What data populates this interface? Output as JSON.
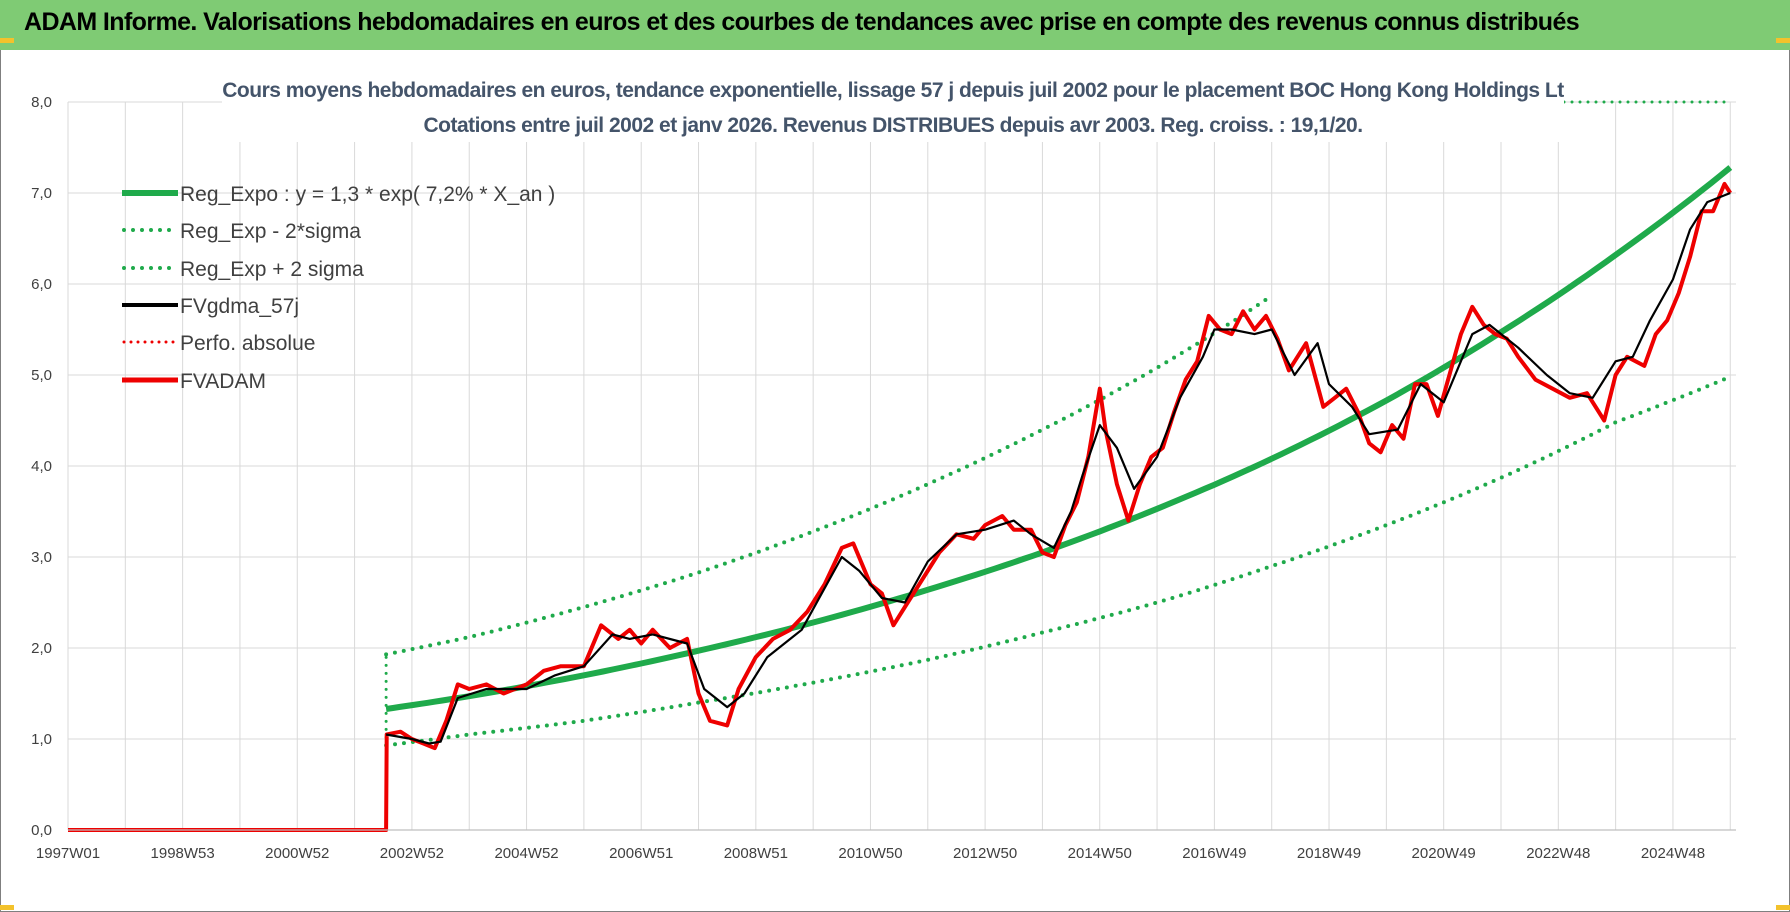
{
  "header": {
    "title": "ADAM Informe. Valorisations hebdomadaires en euros et des courbes de tendances avec prise en compte des revenus connus distribués"
  },
  "colors": {
    "banner": "#7fcb74",
    "reg_expo": "#1faa4b",
    "fvgdma": "#000000",
    "fvadam": "#ee0000",
    "perfo": "#ee0000",
    "grid": "#d9d9d9"
  },
  "chart_data": {
    "type": "line",
    "title": [
      "Cours moyens hebdomadaires en euros, tendance exponentielle, lissage 57 j depuis juil 2002 pour le placement BOC Hong Kong Holdings Lt",
      "Cotations entre juil 2002 et janv 2026. Revenus DISTRIBUES depuis avr 2003. Reg. croiss. : 19,1/20."
    ],
    "x_unit": "year",
    "xlim": [
      1997.0,
      2026.1
    ],
    "x_ticks": [
      1997.0,
      1999.0,
      2001.0,
      2003.0,
      2005.0,
      2007.0,
      2009.0,
      2011.0,
      2013.0,
      2015.0,
      2017.0,
      2019.0,
      2021.0,
      2023.0,
      2025.0
    ],
    "x_tick_labels": [
      "1997W01",
      "1998W53",
      "2000W52",
      "2002W52",
      "2004W52",
      "2006W51",
      "2008W51",
      "2010W50",
      "2012W50",
      "2014W50",
      "2016W49",
      "2018W49",
      "2020W49",
      "2022W48",
      "2024W48"
    ],
    "ylim": [
      0,
      8
    ],
    "y_ticks": [
      0,
      1,
      2,
      3,
      4,
      5,
      6,
      7,
      8
    ],
    "y_tick_labels": [
      "0,0",
      "1,0",
      "2,0",
      "3,0",
      "4,0",
      "5,0",
      "6,0",
      "7,0",
      "8,0"
    ],
    "grid": true,
    "legend_position": "top-left",
    "series": [
      {
        "name": "Reg_Expo : y = 1,3 * exp( 7,2% *  X_an )",
        "style": "solid-thick",
        "color": "#1faa4b",
        "x": [
          2002.55,
          2004.0,
          2006.0,
          2008.0,
          2010.0,
          2012.0,
          2014.0,
          2016.0,
          2018.0,
          2020.0,
          2022.0,
          2024.0,
          2026.0
        ],
        "y": [
          1.33,
          1.47,
          1.7,
          1.97,
          2.28,
          2.64,
          3.05,
          3.53,
          4.08,
          4.72,
          5.47,
          6.32,
          7.28
        ]
      },
      {
        "name": "Reg_Exp - 2*sigma",
        "style": "dotted",
        "color": "#1faa4b",
        "x": [
          2002.55,
          2004.0,
          2006.0,
          2008.0,
          2010.0,
          2012.0,
          2014.0,
          2016.0,
          2018.0,
          2020.0,
          2022.0,
          2024.0,
          2026.0
        ],
        "y": [
          0.93,
          1.05,
          1.2,
          1.4,
          1.62,
          1.87,
          2.17,
          2.5,
          2.9,
          3.35,
          3.87,
          4.48,
          4.98
        ]
      },
      {
        "name": "Reg_Exp + 2 sigma",
        "style": "dotted",
        "color": "#1faa4b",
        "x": [
          2002.55,
          2004.0,
          2006.0,
          2008.0,
          2010.0,
          2012.0,
          2014.0,
          2016.0,
          2018.0
        ],
        "y": [
          1.93,
          2.12,
          2.45,
          2.83,
          3.28,
          3.8,
          4.4,
          5.08,
          5.87
        ],
        "extra_segment": {
          "x": [
            2026.0,
            2027.0
          ],
          "y": [
            8.0,
            8.0
          ]
        }
      },
      {
        "name": "FVgdma_57j",
        "style": "solid",
        "color": "#000000",
        "x": [
          2002.55,
          2003.0,
          2003.3,
          2003.5,
          2003.8,
          2004.3,
          2005.0,
          2005.5,
          2006.0,
          2006.5,
          2006.8,
          2007.2,
          2007.8,
          2008.1,
          2008.5,
          2008.8,
          2009.2,
          2009.8,
          2010.5,
          2010.8,
          2011.2,
          2011.6,
          2012.0,
          2012.5,
          2013.0,
          2013.5,
          2013.8,
          2014.2,
          2014.5,
          2014.7,
          2015.0,
          2015.3,
          2015.6,
          2016.0,
          2016.4,
          2016.8,
          2017.0,
          2017.3,
          2017.7,
          2018.0,
          2018.4,
          2018.8,
          2019.0,
          2019.4,
          2019.7,
          2020.2,
          2020.6,
          2021.0,
          2021.5,
          2021.8,
          2022.3,
          2022.8,
          2023.2,
          2023.6,
          2024.0,
          2024.3,
          2024.6,
          2025.0,
          2025.3,
          2025.6,
          2026.0
        ],
        "y": [
          1.05,
          1.0,
          0.95,
          0.97,
          1.45,
          1.55,
          1.55,
          1.7,
          1.8,
          2.15,
          2.1,
          2.15,
          2.05,
          1.55,
          1.35,
          1.5,
          1.9,
          2.2,
          3.0,
          2.85,
          2.55,
          2.5,
          2.95,
          3.25,
          3.3,
          3.4,
          3.25,
          3.1,
          3.5,
          3.9,
          4.45,
          4.2,
          3.75,
          4.1,
          4.75,
          5.2,
          5.5,
          5.5,
          5.45,
          5.5,
          5.0,
          5.35,
          4.9,
          4.65,
          4.35,
          4.4,
          4.9,
          4.7,
          5.45,
          5.55,
          5.3,
          5.0,
          4.8,
          4.75,
          5.15,
          5.2,
          5.6,
          6.05,
          6.6,
          6.9,
          7.0
        ]
      },
      {
        "name": "Perfo. absolue",
        "style": "dotted",
        "color": "#ee0000",
        "x": [],
        "y": []
      },
      {
        "name": "FVADAM",
        "style": "solid-thick",
        "color": "#ee0000",
        "x": [
          1997.0,
          2002.55,
          2002.56,
          2002.8,
          2003.0,
          2003.2,
          2003.4,
          2003.6,
          2003.8,
          2004.0,
          2004.3,
          2004.6,
          2005.0,
          2005.3,
          2005.6,
          2006.0,
          2006.3,
          2006.6,
          2006.8,
          2007.0,
          2007.2,
          2007.5,
          2007.8,
          2008.0,
          2008.2,
          2008.5,
          2008.7,
          2009.0,
          2009.3,
          2009.6,
          2009.9,
          2010.2,
          2010.5,
          2010.7,
          2011.0,
          2011.2,
          2011.4,
          2011.6,
          2011.9,
          2012.2,
          2012.5,
          2012.8,
          2013.0,
          2013.3,
          2013.5,
          2013.8,
          2014.0,
          2014.2,
          2014.4,
          2014.6,
          2014.8,
          2015.0,
          2015.1,
          2015.3,
          2015.5,
          2015.7,
          2015.9,
          2016.1,
          2016.3,
          2016.5,
          2016.7,
          2016.9,
          2017.1,
          2017.3,
          2017.5,
          2017.7,
          2017.9,
          2018.1,
          2018.3,
          2018.6,
          2018.9,
          2019.1,
          2019.3,
          2019.5,
          2019.7,
          2019.9,
          2020.1,
          2020.3,
          2020.5,
          2020.7,
          2020.9,
          2021.1,
          2021.3,
          2021.5,
          2021.7,
          2021.9,
          2022.1,
          2022.3,
          2022.6,
          2022.9,
          2023.2,
          2023.5,
          2023.8,
          2024.0,
          2024.2,
          2024.5,
          2024.7,
          2024.9,
          2025.1,
          2025.3,
          2025.5,
          2025.7,
          2025.9,
          2026.0
        ],
        "y": [
          0.0,
          0.0,
          1.05,
          1.08,
          1.0,
          0.95,
          0.9,
          1.2,
          1.6,
          1.55,
          1.6,
          1.5,
          1.6,
          1.75,
          1.8,
          1.8,
          2.25,
          2.1,
          2.2,
          2.05,
          2.2,
          2.0,
          2.1,
          1.5,
          1.2,
          1.15,
          1.55,
          1.9,
          2.1,
          2.2,
          2.4,
          2.7,
          3.1,
          3.15,
          2.7,
          2.6,
          2.25,
          2.45,
          2.75,
          3.05,
          3.25,
          3.2,
          3.35,
          3.45,
          3.3,
          3.3,
          3.05,
          3.0,
          3.35,
          3.6,
          4.1,
          4.85,
          4.4,
          3.8,
          3.4,
          3.8,
          4.1,
          4.2,
          4.6,
          4.95,
          5.15,
          5.65,
          5.5,
          5.45,
          5.7,
          5.5,
          5.65,
          5.4,
          5.05,
          5.35,
          4.65,
          4.75,
          4.85,
          4.6,
          4.25,
          4.15,
          4.45,
          4.3,
          4.9,
          4.9,
          4.55,
          5.0,
          5.45,
          5.75,
          5.55,
          5.45,
          5.4,
          5.2,
          4.95,
          4.85,
          4.75,
          4.8,
          4.5,
          5.0,
          5.2,
          5.1,
          5.45,
          5.6,
          5.9,
          6.3,
          6.8,
          6.8,
          7.1,
          7.0
        ]
      }
    ]
  }
}
